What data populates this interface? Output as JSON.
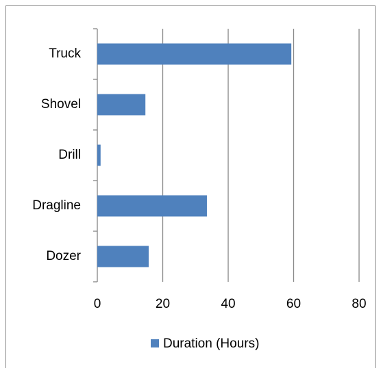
{
  "chart_data": {
    "type": "hbar",
    "categories": [
      "Truck",
      "Shovel",
      "Drill",
      "Dragline",
      "Dozer"
    ],
    "series": [
      {
        "name": "Duration (Hours)",
        "color": "#4f81bd",
        "values": [
          59.3,
          14.7,
          1.0,
          33.5,
          15.7
        ]
      }
    ],
    "xlim": [
      0,
      80
    ],
    "xticks": [
      0,
      20,
      40,
      60,
      80
    ],
    "grid": true,
    "legend": "bottom"
  }
}
